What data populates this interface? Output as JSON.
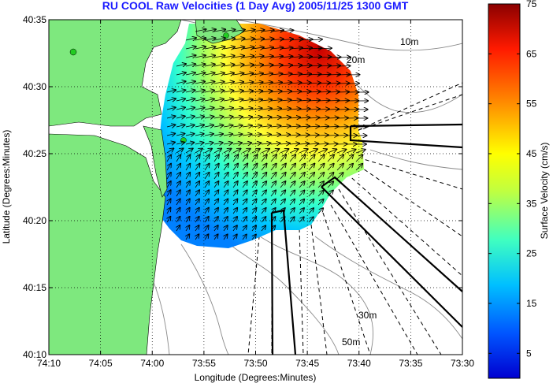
{
  "chart_data": {
    "type": "heatmap",
    "title": "RU COOL Raw Velocities (1 Day Avg) 2005/11/25 1300 GMT",
    "xlabel": "Longitude (Degrees:Minutes)",
    "ylabel": "Latitude (Degrees:Minutes)",
    "x_tick_labels": [
      "74:10",
      "74:05",
      "74:00",
      "73:55",
      "73:50",
      "73:45",
      "73:40",
      "73:35",
      "73:30"
    ],
    "y_tick_labels": [
      "40:35",
      "40:30",
      "40:25",
      "40:20",
      "40:15",
      "40:10"
    ],
    "xlim_minutes_west": [
      10,
      -30
    ],
    "ylim_minutes_north": [
      10,
      35
    ],
    "grid": true,
    "grid_style": "dotted",
    "colorbar": {
      "label": "Surface Velocity (cm/s)",
      "ticks": [
        5,
        15,
        25,
        35,
        45,
        55,
        65,
        75
      ],
      "range": [
        0,
        75
      ],
      "colormap": "jet"
    },
    "contour_labels": [
      "10m",
      "30m",
      "50m",
      "20m"
    ],
    "field": {
      "description_units": "cm/s",
      "mean_direction": "east",
      "regions": [
        {
          "name": "offshore-northeast",
          "speed": 70
        },
        {
          "name": "center-north",
          "speed": 50
        },
        {
          "name": "center",
          "speed": 40
        },
        {
          "name": "nearshore-south",
          "speed": 20
        }
      ]
    },
    "colors": {
      "land": "#7ee87e",
      "ocean_background": "#ffffff",
      "title": "#1a1aff",
      "grid": "#000000",
      "bathymetry": "#808080"
    }
  }
}
